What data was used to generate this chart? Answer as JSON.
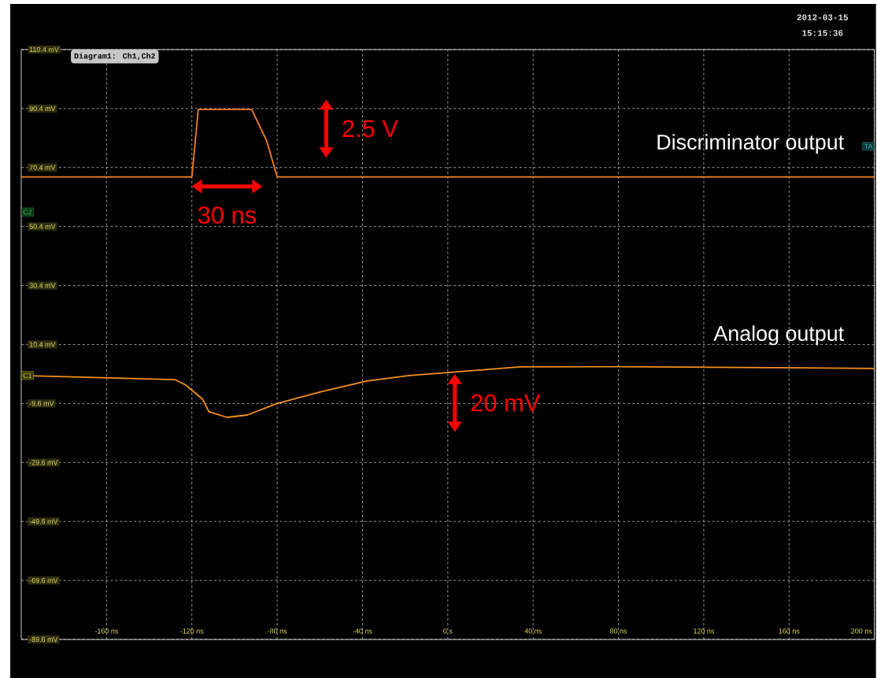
{
  "chart_data": {
    "type": "line",
    "title": "Diagram1: Ch1,Ch2",
    "xlim": [
      -200,
      200
    ],
    "ylim": [
      -89.6,
      110.4
    ],
    "xticks": [
      {
        "value": -160,
        "label": "-160 ns"
      },
      {
        "value": -120,
        "label": "-120 ns"
      },
      {
        "value": -80,
        "label": "-80 ns"
      },
      {
        "value": -40,
        "label": "-40 ns"
      },
      {
        "value": 0,
        "label": "0 s"
      },
      {
        "value": 40,
        "label": "40 ns"
      },
      {
        "value": 80,
        "label": "80 ns"
      },
      {
        "value": 120,
        "label": "120 ns"
      },
      {
        "value": 160,
        "label": "160 ns"
      },
      {
        "value": 200,
        "label": "200 ns"
      }
    ],
    "yticks": [
      {
        "value": -89.6,
        "label": "-89.6 mV"
      },
      {
        "value": -69.6,
        "label": "-69.6 mV"
      },
      {
        "value": -49.6,
        "label": "-49.6 mV"
      },
      {
        "value": -29.6,
        "label": "-29.6 mV"
      },
      {
        "value": -9.6,
        "label": "-9.6 mV"
      },
      {
        "value": 10.4,
        "label": "10.4 mV"
      },
      {
        "value": 30.4,
        "label": "30.4 mV"
      },
      {
        "value": 50.4,
        "label": "50.4 mV"
      },
      {
        "value": 70.4,
        "label": "70.4 mV"
      },
      {
        "value": 90.4,
        "label": "90.4 mV"
      },
      {
        "value": 110.4,
        "label": "110.4 mV"
      }
    ],
    "grid": true,
    "marker": "none",
    "series": [
      {
        "name": "Discriminator output",
        "color": "#f5801e",
        "x": [
          -200,
          -120,
          -117,
          -92,
          -85,
          -80,
          200
        ],
        "values": [
          67.2,
          67.2,
          90.1,
          90.1,
          79.6,
          67.2,
          67.2
        ]
      },
      {
        "name": "Analog output",
        "color": "#f5901e",
        "x": [
          -200,
          -128,
          -123,
          -115,
          -112,
          -103.5,
          -94,
          -80,
          -60,
          -38,
          -18,
          0,
          34,
          80,
          200
        ],
        "values": [
          -0.1,
          -1.5,
          -3.3,
          -8.1,
          -12.4,
          -14.3,
          -13.5,
          -9.6,
          -5.7,
          -2.0,
          -0.1,
          0.9,
          2.8,
          2.9,
          2.3
        ]
      }
    ],
    "annotations": [
      "2.5 V",
      "30 ns",
      "20 mV",
      "2012-03-15 15:15:36",
      "C1",
      "C2",
      "TA"
    ]
  }
}
